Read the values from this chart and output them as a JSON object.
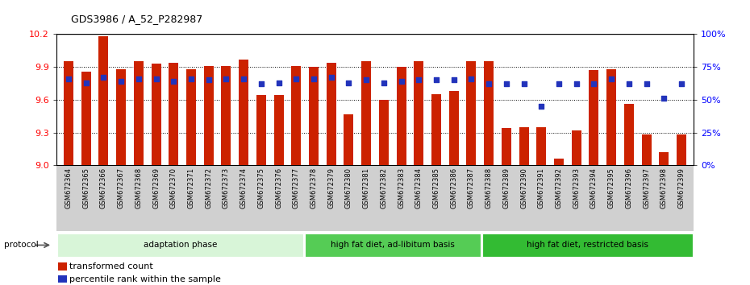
{
  "title": "GDS3986 / A_52_P282987",
  "samples": [
    "GSM672364",
    "GSM672365",
    "GSM672366",
    "GSM672367",
    "GSM672368",
    "GSM672369",
    "GSM672370",
    "GSM672371",
    "GSM672372",
    "GSM672373",
    "GSM672374",
    "GSM672375",
    "GSM672376",
    "GSM672377",
    "GSM672378",
    "GSM672379",
    "GSM672380",
    "GSM672381",
    "GSM672382",
    "GSM672383",
    "GSM672384",
    "GSM672385",
    "GSM672386",
    "GSM672387",
    "GSM672388",
    "GSM672389",
    "GSM672390",
    "GSM672391",
    "GSM672392",
    "GSM672393",
    "GSM672394",
    "GSM672395",
    "GSM672396",
    "GSM672397",
    "GSM672398",
    "GSM672399"
  ],
  "bar_values": [
    9.95,
    9.86,
    10.18,
    9.88,
    9.95,
    9.93,
    9.94,
    9.88,
    9.91,
    9.91,
    9.97,
    9.64,
    9.64,
    9.91,
    9.9,
    9.94,
    9.47,
    9.95,
    9.6,
    9.9,
    9.95,
    9.65,
    9.68,
    9.95,
    9.95,
    9.34,
    9.35,
    9.35,
    9.06,
    9.32,
    9.87,
    9.88,
    9.56,
    9.28,
    9.12,
    9.28
  ],
  "dot_values_pct": [
    66,
    63,
    67,
    64,
    66,
    66,
    64,
    66,
    65,
    66,
    66,
    62,
    63,
    66,
    66,
    67,
    63,
    65,
    63,
    64,
    65,
    65,
    65,
    66,
    62,
    62,
    62,
    45,
    62,
    62,
    62,
    66,
    62,
    62,
    51,
    62
  ],
  "ylim_left": [
    9.0,
    10.2
  ],
  "ylim_right": [
    0,
    100
  ],
  "yticks_left": [
    9.0,
    9.3,
    9.6,
    9.9,
    10.2
  ],
  "yticks_right": [
    0,
    25,
    50,
    75,
    100
  ],
  "ytick_labels_right": [
    "0%",
    "25%",
    "50%",
    "75%",
    "100%"
  ],
  "bar_color": "#cc2200",
  "dot_color": "#2233bb",
  "bar_baseline": 9.0,
  "grid_yticks": [
    9.3,
    9.6,
    9.9
  ],
  "protocol_groups": [
    {
      "label": "adaptation phase",
      "start": 0,
      "end": 14,
      "color": "#d8f5d8"
    },
    {
      "label": "high fat diet, ad-libitum basis",
      "start": 14,
      "end": 24,
      "color": "#55cc55"
    },
    {
      "label": "high fat diet, restricted basis",
      "start": 24,
      "end": 36,
      "color": "#33bb33"
    }
  ],
  "legend_items": [
    {
      "color": "#cc2200",
      "label": "transformed count"
    },
    {
      "color": "#2233bb",
      "label": "percentile rank within the sample"
    }
  ],
  "xtick_bg": "#d0d0d0",
  "fig_width": 9.3,
  "fig_height": 3.54,
  "dpi": 100
}
